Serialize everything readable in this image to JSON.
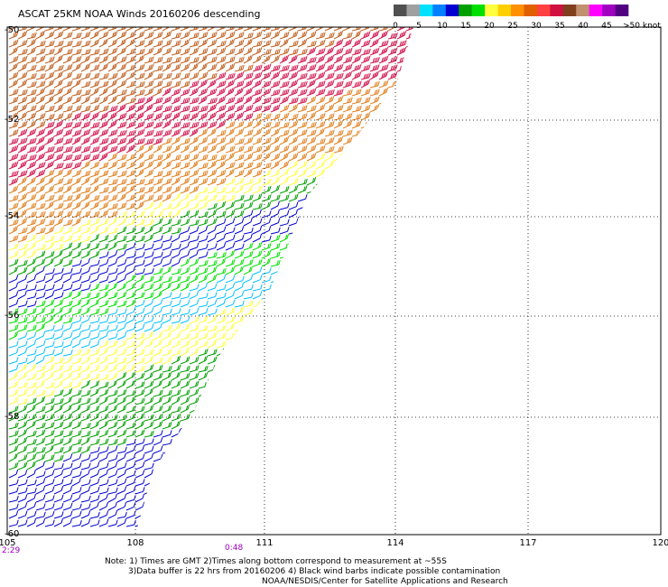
{
  "title": "ASCAT 25KM NOAA Winds 20160206 descending",
  "legend": {
    "ticks": [
      "0",
      "5",
      "10",
      "15",
      "20",
      "25",
      "30",
      "35",
      "40",
      "45",
      ">50 knots"
    ],
    "colors": [
      "#505050",
      "#a0a0a0",
      "#00e0ff",
      "#0080ff",
      "#0000d0",
      "#00a000",
      "#00e000",
      "#ffff40",
      "#ffd000",
      "#ff9000",
      "#e06000",
      "#ff4040",
      "#d01040",
      "#804020",
      "#c09070",
      "#ff00ff",
      "#a000c0",
      "#500080"
    ]
  },
  "map": {
    "lon_ticks": [
      "105",
      "108",
      "111",
      "114",
      "117",
      "120"
    ],
    "lat_ticks": [
      "-50",
      "-52",
      "-54",
      "-56",
      "-58",
      "-60"
    ],
    "time_start": "2:29",
    "time_end": "0:48",
    "swath_bands": [
      {
        "color": "#c06020",
        "speed_kt": 30
      },
      {
        "color": "#d01850",
        "speed_kt": 35
      },
      {
        "color": "#e08020",
        "speed_kt": 28
      },
      {
        "color": "#ffff40",
        "speed_kt": 22
      },
      {
        "color": "#00a000",
        "speed_kt": 18
      },
      {
        "color": "#0000d0",
        "speed_kt": 13
      },
      {
        "color": "#00e000",
        "speed_kt": 17
      },
      {
        "color": "#00c0ff",
        "speed_kt": 8
      },
      {
        "color": "#ffff40",
        "speed_kt": 20
      },
      {
        "color": "#00a000",
        "speed_kt": 16
      },
      {
        "color": "#0000d0",
        "speed_kt": 12
      }
    ]
  },
  "notes": [
    "Note: 1) Times are GMT 2)Times along bottom correspond to measurement at ~55S",
    "3)Data buffer is 22 hrs from 20160206 4) Black wind barbs indicate possible contamination",
    "NOAA/NESDIS/Center for Satellite Applications and Research"
  ]
}
